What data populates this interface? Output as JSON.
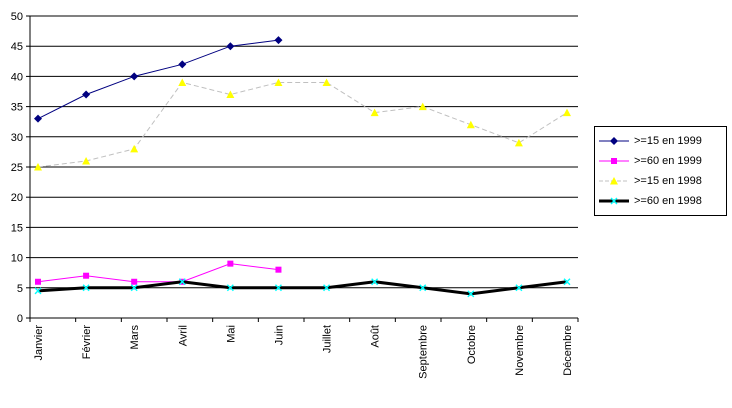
{
  "chart_data": {
    "type": "line",
    "categories": [
      "Janvier",
      "Février",
      "Mars",
      "Avril",
      "Mai",
      "Juin",
      "Juillet",
      "Août",
      "Septembre",
      "Octobre",
      "Novembre",
      "Décembre"
    ],
    "series": [
      {
        "name": ">=15 en 1999",
        "values": [
          33,
          37,
          40,
          42,
          45,
          46,
          null,
          null,
          null,
          null,
          null,
          null
        ],
        "color": "#000080",
        "line_color": "#000080",
        "marker": "diamond",
        "line_style": "solid",
        "line_width": 1
      },
      {
        "name": ">=60 en 1999",
        "values": [
          6,
          7,
          6,
          6,
          9,
          8,
          null,
          null,
          null,
          null,
          null,
          null
        ],
        "color": "#FF00FF",
        "line_color": "#FF00FF",
        "marker": "square",
        "line_style": "solid",
        "line_width": 1
      },
      {
        "name": ">=15 en 1998",
        "values": [
          25,
          26,
          28,
          39,
          37,
          39,
          39,
          34,
          35,
          32,
          29,
          34
        ],
        "color": "#FFFF00",
        "line_color": "#C0C0C0",
        "marker": "triangle",
        "line_style": "dash",
        "line_width": 1
      },
      {
        "name": ">=60 en 1998",
        "values": [
          4.5,
          5,
          5,
          6,
          5,
          5,
          5,
          6,
          5,
          4,
          5,
          6
        ],
        "color": "#00FFFF",
        "line_color": "#000000",
        "marker": "x",
        "line_style": "solid",
        "line_width": 3
      }
    ],
    "ylim": [
      0,
      50
    ],
    "ytick_step": 5,
    "grid": true,
    "grid_color": "#000000",
    "legend_position": "right",
    "background": "#FFFFFF"
  }
}
